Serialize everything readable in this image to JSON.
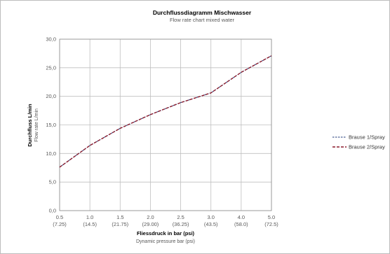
{
  "chart_data": {
    "type": "line",
    "title": "Durchflussdiagramm Mischwasser",
    "subtitle": "Flow rate chart mixed water",
    "xlabel": "Fliessdruck in bar (psi)",
    "xlabel_sub": "Dynamic pressure bar (psi)",
    "ylabel": "Durchfluss L/min",
    "ylabel_sub": "Flow rate L/min",
    "categories": [
      "0.5",
      "1.0",
      "1.5",
      "2.0",
      "2.5",
      "3.0",
      "4.0",
      "5.0"
    ],
    "categories_sub": [
      "(7.25)",
      "(14.5)",
      "(21.75)",
      "(29.00)",
      "(36.25)",
      "(43.5)",
      "(58.0)",
      "(72.5)"
    ],
    "y_ticks": [
      "0,0",
      "5,0",
      "10,0",
      "15,0",
      "20,0",
      "25,0",
      "30,0"
    ],
    "ylim": [
      0,
      30
    ],
    "grid": true,
    "legend_position": "right",
    "series": [
      {
        "name": "Brause 1/Spray",
        "values": [
          7.6,
          11.4,
          14.4,
          16.8,
          18.9,
          20.6,
          24.2,
          27.1
        ],
        "color": "#1f3a7a",
        "dash": "dashed"
      },
      {
        "name": "Brause 2/Spray",
        "values": [
          7.6,
          11.4,
          14.4,
          16.8,
          18.9,
          20.6,
          24.2,
          27.1
        ],
        "color": "#8b1a2b",
        "dash": "dashed"
      }
    ]
  }
}
